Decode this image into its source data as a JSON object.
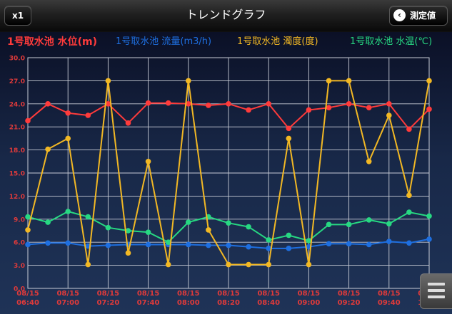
{
  "header": {
    "title": "トレンドグラフ",
    "speed_label": "x1",
    "back_label": "測定値",
    "back_icon": "chevron-left-icon"
  },
  "legend": {
    "items": [
      {
        "label": "1号取水池 水位(m)",
        "color": "#ff3b3b"
      },
      {
        "label": "1号取水池 流量(m3/h)",
        "color": "#1e6fe0"
      },
      {
        "label": "1号取水池 濁度(度)",
        "color": "#f2b824"
      },
      {
        "label": "1号取水池 水温(℃)",
        "color": "#27d882"
      }
    ]
  },
  "menu": {
    "icon": "hamburger-menu-icon"
  },
  "colors": {
    "grid": "#c8ccd6",
    "tick_label": "#e03a3a"
  },
  "chart_data": {
    "type": "line",
    "y_ticks": [
      "0.0",
      "3.0",
      "6.0",
      "9.0",
      "12.0",
      "15.0",
      "18.0",
      "21.0",
      "24.0",
      "27.0",
      "30.0"
    ],
    "ylim": [
      0,
      30
    ],
    "x_tick_labels": [
      {
        "date": "08/15",
        "time": "06:40"
      },
      {
        "date": "08/15",
        "time": "07:00"
      },
      {
        "date": "08/15",
        "time": "07:20"
      },
      {
        "date": "08/15",
        "time": "07:40"
      },
      {
        "date": "08/15",
        "time": "08:00"
      },
      {
        "date": "08/15",
        "time": "08:20"
      },
      {
        "date": "08/15",
        "time": "08:40"
      },
      {
        "date": "08/15",
        "time": "09:00"
      },
      {
        "date": "08/15",
        "time": "09:20"
      },
      {
        "date": "08/15",
        "time": "09:40"
      },
      {
        "date": "08/15",
        "time": "10:00"
      }
    ],
    "x": [
      "06:40",
      "06:50",
      "07:00",
      "07:10",
      "07:20",
      "07:30",
      "07:40",
      "07:50",
      "08:00",
      "08:10",
      "08:20",
      "08:30",
      "08:40",
      "08:50",
      "09:00",
      "09:10",
      "09:20",
      "09:30",
      "09:40",
      "09:50",
      "10:00"
    ],
    "xlim": [
      "06:40",
      "10:00"
    ],
    "series": [
      {
        "name": "1号取水池 水位(m)",
        "color": "#ff3b3b",
        "values": [
          21.8,
          24.0,
          22.8,
          22.5,
          24.0,
          21.5,
          24.1,
          24.1,
          24.0,
          23.8,
          24.0,
          23.2,
          24.0,
          20.8,
          23.2,
          23.5,
          24.0,
          23.5,
          24.0,
          20.7,
          23.3
        ]
      },
      {
        "name": "1号取水池 流量(m3/h)",
        "color": "#1e6fe0",
        "values": [
          5.7,
          5.9,
          5.9,
          5.5,
          5.6,
          5.7,
          5.7,
          5.7,
          5.7,
          5.6,
          5.6,
          5.4,
          5.2,
          5.2,
          5.4,
          5.8,
          5.8,
          5.7,
          6.1,
          5.9,
          6.4
        ]
      },
      {
        "name": "1号取水池 濁度(度)",
        "color": "#f2b824",
        "values": [
          7.6,
          18.1,
          19.5,
          3.1,
          27.0,
          4.6,
          16.5,
          3.1,
          27.0,
          7.6,
          3.1,
          3.1,
          3.1,
          19.5,
          3.1,
          27.0,
          27.0,
          16.5,
          22.5,
          12.1,
          27.0
        ]
      },
      {
        "name": "1号取水池 水温(℃)",
        "color": "#27d882",
        "values": [
          9.3,
          8.6,
          10.0,
          9.3,
          7.9,
          7.5,
          7.3,
          6.0,
          8.6,
          9.3,
          8.5,
          8.0,
          6.3,
          6.9,
          6.2,
          8.3,
          8.3,
          8.9,
          8.4,
          9.9,
          9.4
        ]
      }
    ]
  }
}
